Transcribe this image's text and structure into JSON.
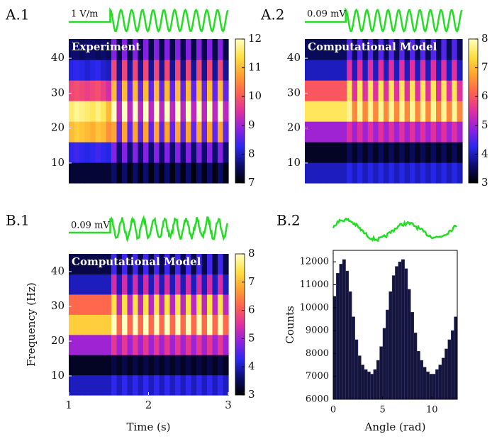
{
  "colormap": [
    "#000000",
    "#0c0c70",
    "#2828f0",
    "#9020e0",
    "#e030a0",
    "#ff6050",
    "#ffa030",
    "#ffe040",
    "#ffffc0"
  ],
  "trace_color": "#22dd22",
  "chart_data": [
    {
      "type": "heatmap",
      "label": "A.1",
      "title": "Experiment",
      "trace_label": "1 V/m",
      "ylim": [
        4.3,
        45.5
      ],
      "yticks": [
        10,
        20,
        30,
        40
      ],
      "clim": [
        7,
        12
      ],
      "cticks": [
        7,
        8,
        9,
        10,
        11,
        12
      ],
      "z": [
        [
          7.3,
          7.3,
          7.3,
          7.3,
          7.3,
          7.3,
          7.3,
          7.3,
          7.6,
          7.1,
          7.6,
          7.1,
          7.6,
          7.1,
          7.6,
          7.1,
          7.6,
          7.1,
          7.6,
          7.1,
          7.6,
          7.1,
          7.6,
          7.1,
          7.6,
          7.1,
          7.6,
          7.1,
          7.6,
          7.1
        ],
        [
          8.3,
          8.4,
          8.3,
          8.2,
          8.3,
          8.4,
          8.3,
          8.2,
          8.8,
          7.6,
          8.8,
          7.6,
          8.8,
          7.6,
          8.8,
          7.6,
          8.8,
          7.6,
          8.8,
          7.6,
          8.8,
          7.6,
          8.8,
          7.6,
          8.8,
          7.6,
          8.8,
          7.6,
          8.8,
          7.6
        ],
        [
          11,
          11.2,
          11.1,
          11,
          10.9,
          11.1,
          11,
          10.6,
          10.8,
          8.6,
          10.8,
          8.6,
          10.8,
          8.6,
          10.8,
          8.6,
          10.8,
          8.6,
          10.8,
          8.6,
          10.8,
          8.6,
          10.8,
          8.6,
          10.8,
          8.6,
          10.8,
          8.6,
          10.8,
          8.6
        ],
        [
          11.6,
          11.8,
          11.7,
          11.6,
          11.5,
          11.7,
          11.5,
          11,
          12,
          9.2,
          12,
          9.2,
          12,
          9.2,
          12,
          9.2,
          12,
          9.2,
          12,
          9.2,
          12,
          9.2,
          12,
          9.2,
          12,
          9.2,
          12,
          9.2,
          12,
          9.2
        ],
        [
          9.8,
          9.9,
          9.8,
          9.7,
          9.8,
          9.9,
          9.7,
          9.4,
          11,
          8.6,
          11,
          8.6,
          11,
          8.6,
          11,
          8.6,
          11,
          8.6,
          11,
          8.6,
          11,
          8.6,
          11,
          8.6,
          11,
          8.6,
          11,
          8.6,
          11,
          8.6
        ],
        [
          8.2,
          8.3,
          8.2,
          8.1,
          8.2,
          8.3,
          8.1,
          8,
          9.8,
          7.8,
          9.8,
          7.8,
          9.8,
          7.8,
          9.8,
          7.8,
          9.8,
          7.8,
          9.8,
          7.8,
          9.8,
          7.8,
          9.8,
          7.8,
          9.8,
          7.8,
          9.8,
          7.8,
          9.8,
          7.8
        ],
        [
          7.6,
          7.6,
          7.5,
          7.6,
          7.6,
          7.5,
          7.6,
          7.5,
          8.8,
          7.4,
          8.8,
          7.4,
          8.8,
          7.4,
          8.8,
          7.4,
          8.8,
          7.4,
          8.8,
          7.4,
          8.8,
          7.4,
          8.8,
          7.4,
          8.8,
          7.4,
          8.8,
          7.4,
          8.8,
          7.4
        ]
      ]
    },
    {
      "type": "heatmap",
      "label": "A.2",
      "title": "Computational Model",
      "trace_label": "0.09 mV",
      "ylim": [
        4.3,
        45.5
      ],
      "yticks": [
        10,
        20,
        30,
        40
      ],
      "clim": [
        3,
        8
      ],
      "cticks": [
        3,
        4,
        5,
        6,
        7,
        8
      ],
      "z": [
        [
          4,
          4,
          4,
          4,
          4,
          4,
          4,
          4,
          4.2,
          4,
          4.2,
          4,
          4.2,
          4,
          4.2,
          4,
          4.2,
          4,
          4.2,
          4,
          4.2,
          4,
          4.2,
          4,
          4.2,
          4,
          4.2,
          4,
          4.2,
          4
        ],
        [
          3.2,
          3.2,
          3.2,
          3.2,
          3.2,
          3.2,
          3.2,
          3.2,
          3.5,
          3.2,
          3.5,
          3.2,
          3.5,
          3.2,
          3.5,
          3.2,
          3.5,
          3.2,
          3.5,
          3.2,
          3.5,
          3.2,
          3.5,
          3.2,
          3.5,
          3.2,
          3.5,
          3.2,
          3.5,
          3.2
        ],
        [
          5,
          5,
          5,
          5,
          5,
          5,
          5,
          5,
          5.5,
          5,
          5.5,
          5,
          5.5,
          5,
          5.5,
          5,
          5.5,
          5,
          5.5,
          5,
          5.5,
          5,
          5.5,
          5,
          5.5,
          5,
          5.5,
          5,
          5.5,
          5
        ],
        [
          7.5,
          7.5,
          7.5,
          7.5,
          7.5,
          7.5,
          7.5,
          7.5,
          7.8,
          6.5,
          7.8,
          6.5,
          7.8,
          6.5,
          7.8,
          6.5,
          7.8,
          6.5,
          7.8,
          6.5,
          7.8,
          6.5,
          7.8,
          6.5,
          7.8,
          6.5,
          7.8,
          6.5,
          7.8,
          6.5
        ],
        [
          6,
          6,
          6,
          6,
          6,
          6,
          6,
          6,
          7.5,
          5.5,
          7.5,
          5.5,
          7.5,
          5.5,
          7.5,
          5.5,
          7.5,
          5.5,
          7.5,
          5.5,
          7.5,
          5.5,
          7.5,
          5.5,
          7.5,
          5.5,
          7.5,
          5.5,
          7.5,
          5.5
        ],
        [
          4,
          4,
          4,
          4,
          4,
          4,
          4,
          4,
          5.5,
          4,
          5.5,
          4,
          5.5,
          4,
          5.5,
          4,
          5.5,
          4,
          5.5,
          4,
          5.5,
          4,
          5.5,
          4,
          5.5,
          4,
          5.5,
          4,
          5.5,
          4
        ],
        [
          3.5,
          3.5,
          3.5,
          3.5,
          3.5,
          3.5,
          3.5,
          3.5,
          4.5,
          3.5,
          4.5,
          3.5,
          4.5,
          3.5,
          4.5,
          3.5,
          4.5,
          3.5,
          4.5,
          3.5,
          4.5,
          3.5,
          4.5,
          3.5,
          4.5,
          3.5,
          4.5,
          3.5,
          4.5,
          3.5
        ]
      ]
    },
    {
      "type": "heatmap",
      "label": "B.1",
      "title": "Computational Model",
      "trace_label": "0.09 mV",
      "xlabel": "Time (s)",
      "ylabel": "Frequency (Hz)",
      "xlim": [
        1,
        3
      ],
      "xticks": [
        1,
        2,
        3
      ],
      "ylim": [
        4.5,
        45.1
      ],
      "yticks": [
        10,
        20,
        30,
        40
      ],
      "clim": [
        3,
        8
      ],
      "cticks": [
        3,
        4,
        5,
        6,
        7,
        8
      ],
      "z": [
        [
          4,
          4,
          4,
          4,
          4,
          4,
          4,
          4,
          4.3,
          4,
          4.3,
          4,
          4.3,
          4,
          4.3,
          4,
          4.3,
          4,
          4.3,
          4,
          4.3,
          4,
          4.3,
          4,
          4.3,
          4,
          4.3,
          4,
          4.3,
          4
        ],
        [
          3.2,
          3.2,
          3.2,
          3.2,
          3.2,
          3.2,
          3.2,
          3.2,
          3.4,
          3.2,
          3.4,
          3.2,
          3.4,
          3.2,
          3.4,
          3.2,
          3.4,
          3.2,
          3.4,
          3.2,
          3.4,
          3.2,
          3.4,
          3.2,
          3.4,
          3.2,
          3.4,
          3.2,
          3.4,
          3.2
        ],
        [
          5,
          5,
          5,
          5,
          5,
          5,
          5,
          5,
          5.6,
          5,
          5.6,
          5,
          5.6,
          5,
          5.6,
          5,
          5.6,
          5,
          5.6,
          5,
          5.6,
          5,
          5.6,
          5,
          5.6,
          5,
          5.6,
          5,
          5.6,
          5
        ],
        [
          7.2,
          7.2,
          7.2,
          7.2,
          7.2,
          7.2,
          7.2,
          7.2,
          8,
          6.2,
          8,
          6.2,
          8,
          6.2,
          8,
          6.2,
          8,
          6.2,
          8,
          6.2,
          8,
          6.2,
          8,
          6.2,
          8,
          6.2,
          8,
          6.2,
          8,
          6.2
        ],
        [
          6.2,
          6.2,
          6.2,
          6.2,
          6.2,
          6.2,
          6.2,
          6.2,
          7.4,
          5.2,
          7.4,
          5.2,
          7.4,
          5.2,
          7.4,
          5.2,
          7.4,
          5.2,
          7.4,
          5.2,
          7.4,
          5.2,
          7.4,
          5.2,
          7.4,
          5.2,
          7.4,
          5.2,
          7.4,
          5.2
        ],
        [
          4,
          4,
          4,
          4,
          4,
          4,
          4,
          4,
          5.4,
          4,
          5.4,
          4,
          5.4,
          4,
          5.4,
          4,
          5.4,
          4,
          5.4,
          4,
          5.4,
          4,
          5.4,
          4,
          5.4,
          4,
          5.4,
          4,
          5.4,
          4
        ],
        [
          3.4,
          3.4,
          3.4,
          3.4,
          3.4,
          3.4,
          3.4,
          3.4,
          4.4,
          3.4,
          4.4,
          3.4,
          4.4,
          3.4,
          4.4,
          3.4,
          4.4,
          3.4,
          4.4,
          3.4,
          4.4,
          3.4,
          4.4,
          3.4,
          4.4,
          3.4,
          4.4,
          3.4,
          4.4,
          3.4
        ]
      ]
    },
    {
      "type": "histogram",
      "label": "B.2",
      "xlabel": "Angle (rad)",
      "ylabel": "Counts",
      "color": "#14143c",
      "xlim": [
        0,
        12.57
      ],
      "xticks": [
        0,
        5,
        10
      ],
      "ylim": [
        6000,
        12500
      ],
      "yticks": [
        6000,
        7000,
        8000,
        9000,
        10000,
        11000,
        12000
      ],
      "bins": [
        0,
        0.31,
        0.63,
        0.94,
        1.26,
        1.57,
        1.88,
        2.2,
        2.51,
        2.83,
        3.14,
        3.46,
        3.77,
        4.08,
        4.4,
        4.71,
        5.03,
        5.34,
        5.65,
        5.97,
        6.28,
        6.6,
        6.91,
        7.23,
        7.54,
        7.85,
        8.17,
        8.48,
        8.8,
        9.11,
        9.42,
        9.74,
        10.05,
        10.37,
        10.68,
        11,
        11.31,
        11.62,
        11.94,
        12.25,
        12.57
      ],
      "counts": [
        10500,
        11500,
        11900,
        12100,
        11600,
        10700,
        9600,
        8600,
        7900,
        7500,
        7300,
        7200,
        7100,
        7300,
        7700,
        8300,
        9100,
        9900,
        10700,
        11400,
        11800,
        12000,
        12100,
        11700,
        10800,
        9800,
        8900,
        8100,
        7700,
        7400,
        7200,
        7100,
        7100,
        7300,
        7500,
        7800,
        8200,
        8600,
        9000,
        9600
      ]
    }
  ]
}
